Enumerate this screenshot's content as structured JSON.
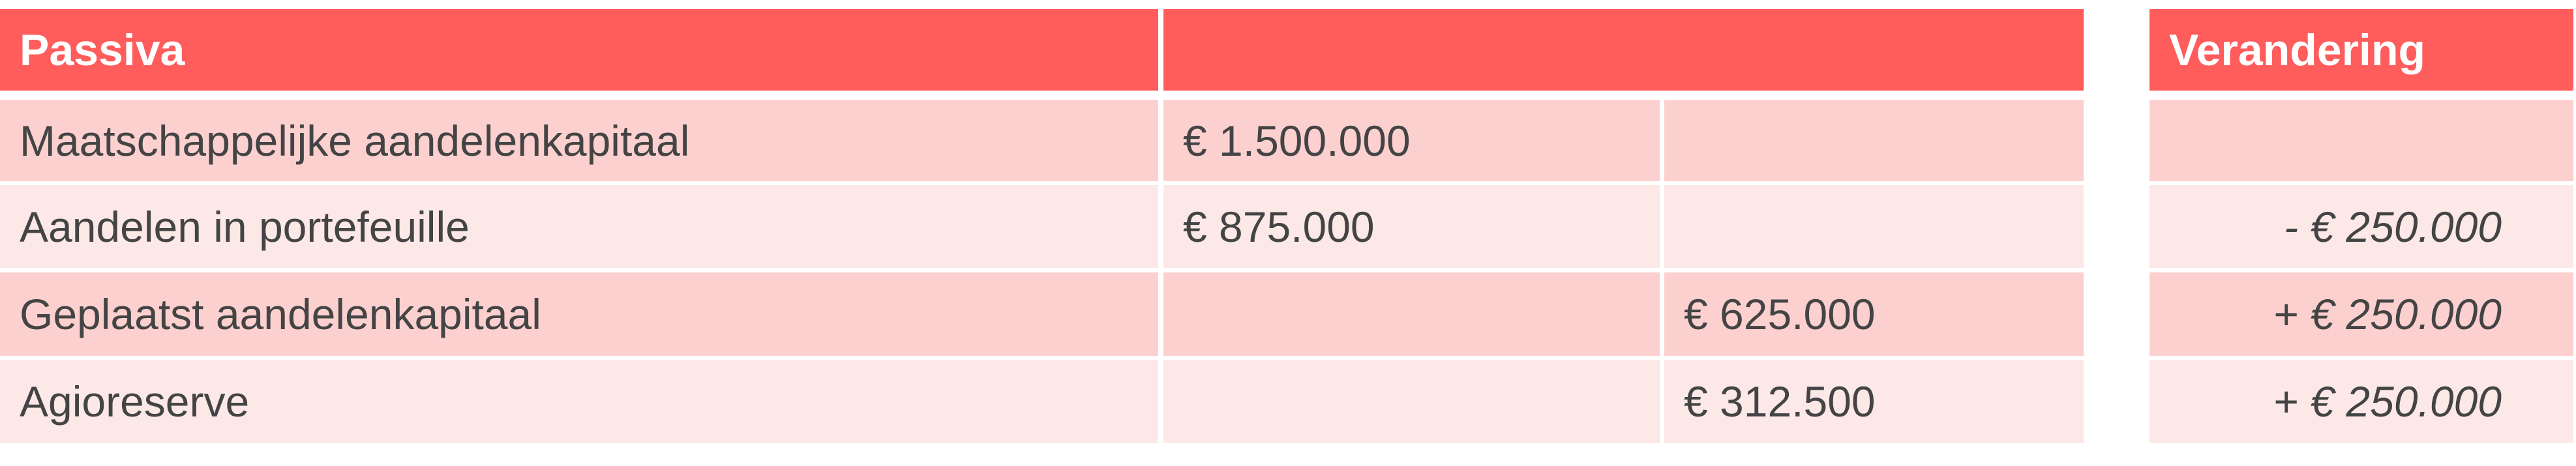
{
  "header": {
    "title": "Passiva",
    "change_title": "Verandering"
  },
  "rows": [
    {
      "label": "Maatschappelijke aandelenkapitaal",
      "col1": "€ 1.500.000",
      "col2": "",
      "change": ""
    },
    {
      "label": "Aandelen in portefeuille",
      "col1": "€ 875.000",
      "col2": "",
      "change": "- € 250.000"
    },
    {
      "label": "Geplaatst aandelenkapitaal",
      "col1": "",
      "col2": "€ 625.000",
      "change": "+ € 250.000"
    },
    {
      "label": "Agioreserve",
      "col1": "",
      "col2": "€ 312.500",
      "change": "+ € 250.000"
    }
  ],
  "colors": {
    "header": "#FF5C5C",
    "row_dark": "#FDD0D0",
    "row_light": "#FDE8E8",
    "text": "#444444"
  }
}
